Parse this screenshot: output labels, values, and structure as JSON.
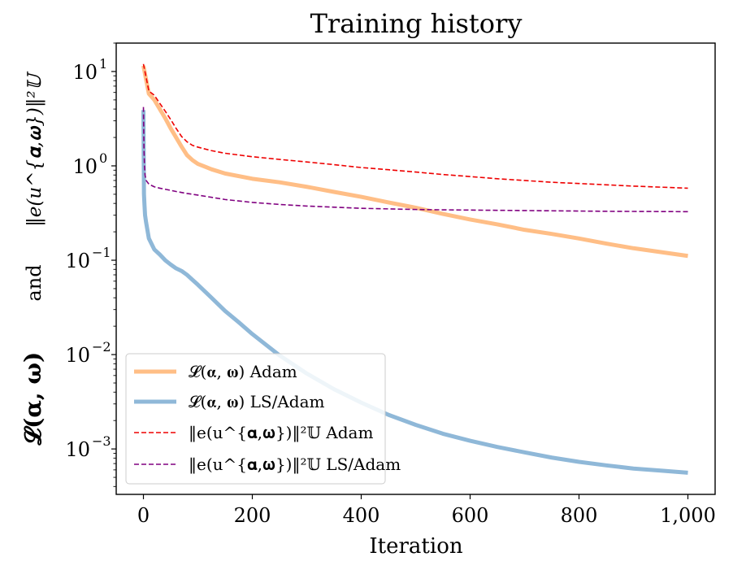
{
  "chart_data": {
    "type": "line",
    "title": "Training history",
    "xlabel": "Iteration",
    "ylabel": {
      "left": "𝓛(𝛂, 𝛚)",
      "middle": "and",
      "right": "‖e(u^{𝛂,𝛚})‖²𝕌"
    },
    "yscale": "log",
    "xlim": [
      -50,
      1050
    ],
    "ylim": [
      0.00033,
      20
    ],
    "x_ticks": [
      0,
      200,
      400,
      600,
      800,
      1000
    ],
    "x_tick_labels": [
      "0",
      "200",
      "400",
      "600",
      "800",
      "1,000"
    ],
    "y_ticks": [
      0.001,
      0.01,
      0.1,
      1,
      10
    ],
    "y_tick_labels": [
      {
        "base": "10",
        "exp": "−3"
      },
      {
        "base": "10",
        "exp": "−2"
      },
      {
        "base": "10",
        "exp": "−1"
      },
      {
        "base": "10",
        "exp": "0"
      },
      {
        "base": "10",
        "exp": "1"
      }
    ],
    "grid": false,
    "legend_position": "lower-left",
    "series": [
      {
        "name": "𝓛(𝛂, 𝛚) Adam",
        "color": "#ffbe86",
        "style": "solid",
        "x": [
          0,
          10,
          20,
          30,
          40,
          50,
          60,
          70,
          80,
          90,
          100,
          125,
          150,
          200,
          250,
          300,
          350,
          400,
          450,
          500,
          550,
          600,
          650,
          700,
          750,
          800,
          850,
          900,
          950,
          1000
        ],
        "values": [
          11.5,
          5.8,
          5.0,
          4.0,
          3.2,
          2.5,
          2.0,
          1.6,
          1.3,
          1.15,
          1.05,
          0.92,
          0.83,
          0.73,
          0.67,
          0.6,
          0.53,
          0.47,
          0.41,
          0.36,
          0.31,
          0.27,
          0.24,
          0.21,
          0.19,
          0.17,
          0.15,
          0.134,
          0.122,
          0.111
        ]
      },
      {
        "name": "𝓛(𝛂, 𝛚) LS/Adam",
        "color": "#8fb8d8",
        "style": "solid",
        "x": [
          0,
          1,
          2,
          3,
          5,
          10,
          20,
          30,
          40,
          50,
          60,
          70,
          80,
          90,
          100,
          125,
          150,
          175,
          200,
          250,
          300,
          350,
          400,
          450,
          500,
          550,
          600,
          650,
          700,
          750,
          800,
          850,
          900,
          950,
          1000
        ],
        "values": [
          3.9,
          0.5,
          0.38,
          0.3,
          0.25,
          0.17,
          0.13,
          0.115,
          0.1,
          0.09,
          0.082,
          0.077,
          0.07,
          0.062,
          0.055,
          0.04,
          0.029,
          0.022,
          0.0165,
          0.0098,
          0.0063,
          0.0043,
          0.0031,
          0.0023,
          0.0018,
          0.00145,
          0.00122,
          0.00105,
          0.00092,
          0.00081,
          0.00073,
          0.00067,
          0.00062,
          0.00059,
          0.00056
        ]
      },
      {
        "name": "‖e(u^{𝛂,𝛚})‖²𝕌 Adam",
        "color": "#ee0000",
        "style": "dashed",
        "x": [
          0,
          10,
          20,
          30,
          40,
          50,
          60,
          70,
          80,
          90,
          100,
          125,
          150,
          200,
          250,
          300,
          350,
          400,
          450,
          500,
          550,
          600,
          650,
          700,
          750,
          800,
          850,
          900,
          950,
          1000
        ],
        "values": [
          12.0,
          6.2,
          5.6,
          4.6,
          3.8,
          3.1,
          2.5,
          2.05,
          1.8,
          1.65,
          1.58,
          1.45,
          1.36,
          1.25,
          1.17,
          1.1,
          1.03,
          0.96,
          0.91,
          0.86,
          0.81,
          0.77,
          0.73,
          0.7,
          0.67,
          0.65,
          0.63,
          0.61,
          0.595,
          0.58
        ]
      },
      {
        "name": "‖e(u^{𝛂,𝛚})‖²𝕌 LS/Adam",
        "color": "#800080",
        "style": "dashed",
        "x": [
          0,
          1,
          2,
          3,
          5,
          10,
          20,
          30,
          40,
          50,
          60,
          80,
          100,
          150,
          200,
          250,
          300,
          350,
          400,
          450,
          500,
          550,
          600,
          650,
          700,
          750,
          800,
          850,
          900,
          950,
          1000
        ],
        "values": [
          4.2,
          1.5,
          1.0,
          0.8,
          0.7,
          0.64,
          0.6,
          0.58,
          0.565,
          0.55,
          0.535,
          0.51,
          0.49,
          0.44,
          0.41,
          0.39,
          0.375,
          0.365,
          0.355,
          0.35,
          0.345,
          0.342,
          0.34,
          0.338,
          0.336,
          0.334,
          0.332,
          0.33,
          0.329,
          0.328,
          0.327
        ]
      }
    ]
  }
}
